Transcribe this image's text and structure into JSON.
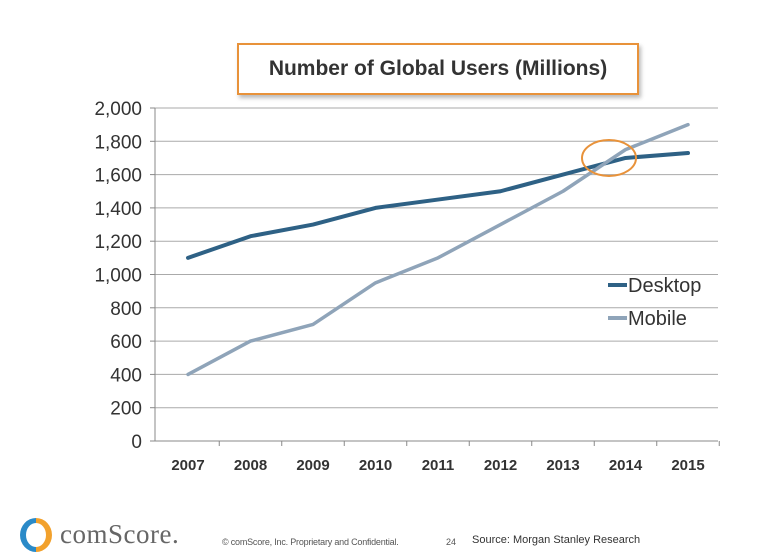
{
  "chart_data": {
    "type": "line",
    "title": "Number of Global Users (Millions)",
    "categories": [
      "2007",
      "2008",
      "2009",
      "2010",
      "2011",
      "2012",
      "2013",
      "2014",
      "2015"
    ],
    "series": [
      {
        "name": "Desktop",
        "color": "#2e6185",
        "values": [
          1100,
          1230,
          1300,
          1400,
          1450,
          1500,
          1600,
          1700,
          1730
        ]
      },
      {
        "name": "Mobile",
        "color": "#8fa4b9",
        "values": [
          400,
          600,
          700,
          950,
          1100,
          1300,
          1500,
          1750,
          1900
        ]
      }
    ],
    "ylim": [
      0,
      2000
    ],
    "yticks": [
      "0",
      "200",
      "400",
      "600",
      "800",
      "1,000",
      "1,200",
      "1,400",
      "1,600",
      "1,800",
      "2,000"
    ],
    "grid": true,
    "legend": "right",
    "annotation": {
      "type": "ellipse",
      "color": "#e8923a",
      "note": "crossover near 2013-2014"
    }
  },
  "footer": {
    "logo": "comScore.",
    "copyright": "© comScore, Inc.  Proprietary and Confidential.",
    "page": "24",
    "source": "Source: Morgan Stanley Research"
  }
}
